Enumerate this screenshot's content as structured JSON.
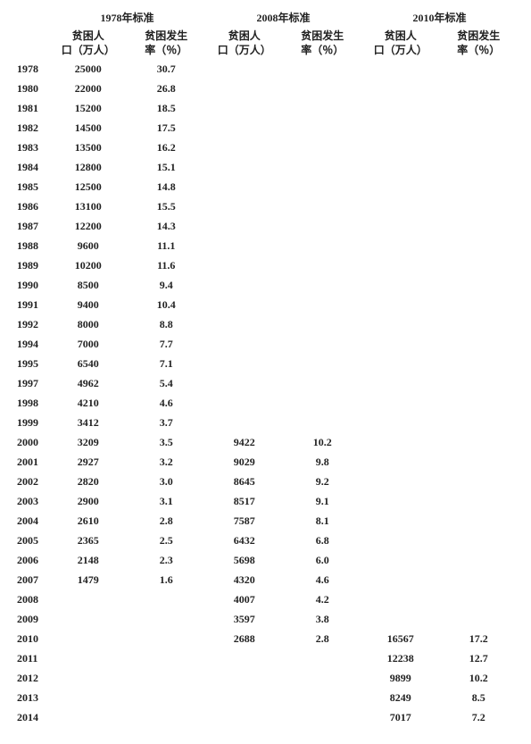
{
  "type": "table",
  "background_color": "#ffffff",
  "text_color": "#222222",
  "font_family": "SimSun",
  "font_size_pt": 9,
  "font_weight": "bold",
  "header_groups": [
    "1978年标准",
    "2008年标准",
    "2010年标准"
  ],
  "sub_headers": {
    "pop": "贫困人口（万人）",
    "rate": "贫困发生率（％）"
  },
  "columns": [
    "year",
    "pop_1978",
    "rate_1978",
    "pop_2008",
    "rate_2008",
    "pop_2010",
    "rate_2010"
  ],
  "rows": [
    {
      "year": "1978",
      "pop_1978": "25000",
      "rate_1978": "30.7",
      "pop_2008": "",
      "rate_2008": "",
      "pop_2010": "",
      "rate_2010": ""
    },
    {
      "year": "1980",
      "pop_1978": "22000",
      "rate_1978": "26.8",
      "pop_2008": "",
      "rate_2008": "",
      "pop_2010": "",
      "rate_2010": ""
    },
    {
      "year": "1981",
      "pop_1978": "15200",
      "rate_1978": "18.5",
      "pop_2008": "",
      "rate_2008": "",
      "pop_2010": "",
      "rate_2010": ""
    },
    {
      "year": "1982",
      "pop_1978": "14500",
      "rate_1978": "17.5",
      "pop_2008": "",
      "rate_2008": "",
      "pop_2010": "",
      "rate_2010": ""
    },
    {
      "year": "1983",
      "pop_1978": "13500",
      "rate_1978": "16.2",
      "pop_2008": "",
      "rate_2008": "",
      "pop_2010": "",
      "rate_2010": ""
    },
    {
      "year": "1984",
      "pop_1978": "12800",
      "rate_1978": "15.1",
      "pop_2008": "",
      "rate_2008": "",
      "pop_2010": "",
      "rate_2010": ""
    },
    {
      "year": "1985",
      "pop_1978": "12500",
      "rate_1978": "14.8",
      "pop_2008": "",
      "rate_2008": "",
      "pop_2010": "",
      "rate_2010": ""
    },
    {
      "year": "1986",
      "pop_1978": "13100",
      "rate_1978": "15.5",
      "pop_2008": "",
      "rate_2008": "",
      "pop_2010": "",
      "rate_2010": ""
    },
    {
      "year": "1987",
      "pop_1978": "12200",
      "rate_1978": "14.3",
      "pop_2008": "",
      "rate_2008": "",
      "pop_2010": "",
      "rate_2010": ""
    },
    {
      "year": "1988",
      "pop_1978": "9600",
      "rate_1978": "11.1",
      "pop_2008": "",
      "rate_2008": "",
      "pop_2010": "",
      "rate_2010": ""
    },
    {
      "year": "1989",
      "pop_1978": "10200",
      "rate_1978": "11.6",
      "pop_2008": "",
      "rate_2008": "",
      "pop_2010": "",
      "rate_2010": ""
    },
    {
      "year": "1990",
      "pop_1978": "8500",
      "rate_1978": "9.4",
      "pop_2008": "",
      "rate_2008": "",
      "pop_2010": "",
      "rate_2010": ""
    },
    {
      "year": "1991",
      "pop_1978": "9400",
      "rate_1978": "10.4",
      "pop_2008": "",
      "rate_2008": "",
      "pop_2010": "",
      "rate_2010": ""
    },
    {
      "year": "1992",
      "pop_1978": "8000",
      "rate_1978": "8.8",
      "pop_2008": "",
      "rate_2008": "",
      "pop_2010": "",
      "rate_2010": ""
    },
    {
      "year": "1994",
      "pop_1978": "7000",
      "rate_1978": "7.7",
      "pop_2008": "",
      "rate_2008": "",
      "pop_2010": "",
      "rate_2010": ""
    },
    {
      "year": "1995",
      "pop_1978": "6540",
      "rate_1978": "7.1",
      "pop_2008": "",
      "rate_2008": "",
      "pop_2010": "",
      "rate_2010": ""
    },
    {
      "year": "1997",
      "pop_1978": "4962",
      "rate_1978": "5.4",
      "pop_2008": "",
      "rate_2008": "",
      "pop_2010": "",
      "rate_2010": ""
    },
    {
      "year": "1998",
      "pop_1978": "4210",
      "rate_1978": "4.6",
      "pop_2008": "",
      "rate_2008": "",
      "pop_2010": "",
      "rate_2010": ""
    },
    {
      "year": "1999",
      "pop_1978": "3412",
      "rate_1978": "3.7",
      "pop_2008": "",
      "rate_2008": "",
      "pop_2010": "",
      "rate_2010": ""
    },
    {
      "year": "2000",
      "pop_1978": "3209",
      "rate_1978": "3.5",
      "pop_2008": "9422",
      "rate_2008": "10.2",
      "pop_2010": "",
      "rate_2010": ""
    },
    {
      "year": "2001",
      "pop_1978": "2927",
      "rate_1978": "3.2",
      "pop_2008": "9029",
      "rate_2008": "9.8",
      "pop_2010": "",
      "rate_2010": ""
    },
    {
      "year": "2002",
      "pop_1978": "2820",
      "rate_1978": "3.0",
      "pop_2008": "8645",
      "rate_2008": "9.2",
      "pop_2010": "",
      "rate_2010": ""
    },
    {
      "year": "2003",
      "pop_1978": "2900",
      "rate_1978": "3.1",
      "pop_2008": "8517",
      "rate_2008": "9.1",
      "pop_2010": "",
      "rate_2010": ""
    },
    {
      "year": "2004",
      "pop_1978": "2610",
      "rate_1978": "2.8",
      "pop_2008": "7587",
      "rate_2008": "8.1",
      "pop_2010": "",
      "rate_2010": ""
    },
    {
      "year": "2005",
      "pop_1978": "2365",
      "rate_1978": "2.5",
      "pop_2008": "6432",
      "rate_2008": "6.8",
      "pop_2010": "",
      "rate_2010": ""
    },
    {
      "year": "2006",
      "pop_1978": "2148",
      "rate_1978": "2.3",
      "pop_2008": "5698",
      "rate_2008": "6.0",
      "pop_2010": "",
      "rate_2010": ""
    },
    {
      "year": "2007",
      "pop_1978": "1479",
      "rate_1978": "1.6",
      "pop_2008": "4320",
      "rate_2008": "4.6",
      "pop_2010": "",
      "rate_2010": ""
    },
    {
      "year": "2008",
      "pop_1978": "",
      "rate_1978": "",
      "pop_2008": "4007",
      "rate_2008": "4.2",
      "pop_2010": "",
      "rate_2010": ""
    },
    {
      "year": "2009",
      "pop_1978": "",
      "rate_1978": "",
      "pop_2008": "3597",
      "rate_2008": "3.8",
      "pop_2010": "",
      "rate_2010": ""
    },
    {
      "year": "2010",
      "pop_1978": "",
      "rate_1978": "",
      "pop_2008": "2688",
      "rate_2008": "2.8",
      "pop_2010": "16567",
      "rate_2010": "17.2"
    },
    {
      "year": "2011",
      "pop_1978": "",
      "rate_1978": "",
      "pop_2008": "",
      "rate_2008": "",
      "pop_2010": "12238",
      "rate_2010": "12.7"
    },
    {
      "year": "2012",
      "pop_1978": "",
      "rate_1978": "",
      "pop_2008": "",
      "rate_2008": "",
      "pop_2010": "9899",
      "rate_2010": "10.2"
    },
    {
      "year": "2013",
      "pop_1978": "",
      "rate_1978": "",
      "pop_2008": "",
      "rate_2008": "",
      "pop_2010": "8249",
      "rate_2010": "8.5"
    },
    {
      "year": "2014",
      "pop_1978": "",
      "rate_1978": "",
      "pop_2008": "",
      "rate_2008": "",
      "pop_2010": "7017",
      "rate_2010": "7.2"
    }
  ]
}
